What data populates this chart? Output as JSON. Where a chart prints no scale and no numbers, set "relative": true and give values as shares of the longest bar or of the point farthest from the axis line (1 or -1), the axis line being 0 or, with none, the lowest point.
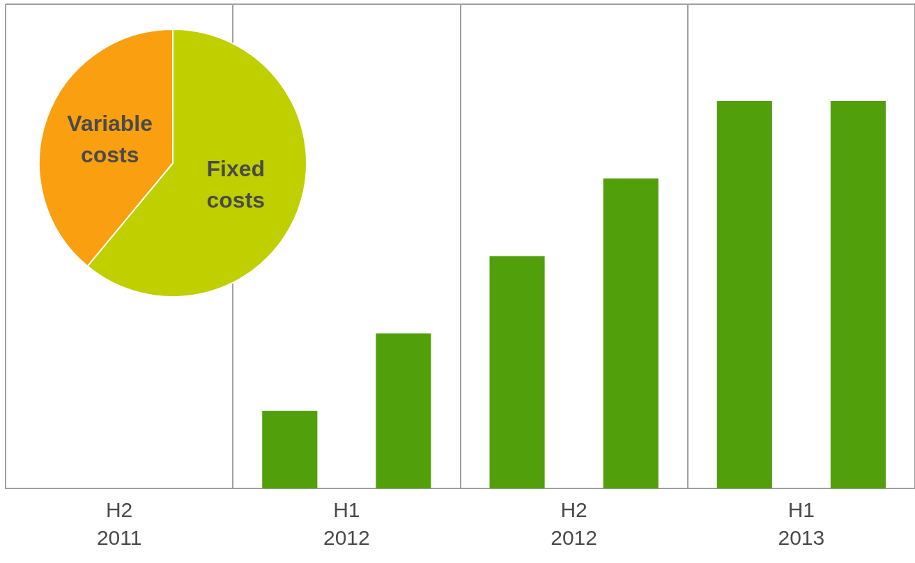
{
  "chart_data": [
    {
      "type": "bar",
      "categories": [
        "H2 2011",
        "H1 2012",
        "H2 2012",
        "H1 2013"
      ],
      "relative": true,
      "grid": "x",
      "series": [
        {
          "color": "#529f0c",
          "values": [
            null,
            0.2,
            0.6,
            1
          ]
        },
        {
          "color": "#529f0c",
          "values": [
            null,
            0.4,
            0.8,
            1
          ]
        }
      ]
    },
    {
      "type": "pie",
      "categories": [
        "Fixed costs",
        "Variable costs"
      ],
      "values": [
        61,
        39
      ],
      "colors": [
        "#bfcf00",
        "#f99f10"
      ]
    }
  ]
}
